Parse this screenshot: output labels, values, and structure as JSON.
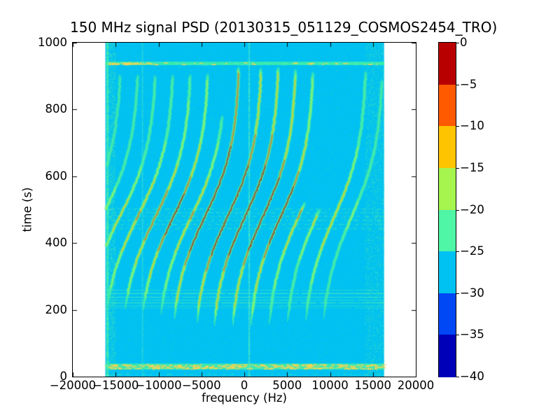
{
  "chart": {
    "title": "150 MHz signal PSD (20130315_051129_COSMOS2454_TRO)",
    "xlabel": "frequency (Hz)",
    "ylabel": "time (s)"
  },
  "chart_data": {
    "type": "heatmap",
    "subtype": "doppler-spectrogram-waterfall",
    "title": "150 MHz signal PSD (20130315_051129_COSMOS2454_TRO)",
    "xlabel": "frequency (Hz)",
    "ylabel": "time (s)",
    "xlim": [
      -20000,
      20000
    ],
    "ylim": [
      0,
      1000
    ],
    "grid": false,
    "xtick_values": [
      -20000,
      -15000,
      -10000,
      -5000,
      0,
      5000,
      10000,
      15000,
      20000
    ],
    "xtick_labels": [
      "−20000",
      "−15000",
      "−10000",
      "−5000",
      "0",
      "5000",
      "10000",
      "15000",
      "20000"
    ],
    "ytick_values": [
      1000,
      800,
      600,
      400,
      200,
      0
    ],
    "ytick_labels": [
      "1000",
      "800",
      "600",
      "400",
      "200",
      "0"
    ],
    "colorbar": {
      "tick_values": [
        0,
        -5,
        -10,
        -15,
        -20,
        -25,
        -30,
        -35,
        -40
      ],
      "tick_labels": [
        "0",
        "−5",
        "−10",
        "−15",
        "−20",
        "−25",
        "−30",
        "−35",
        "−40"
      ],
      "segment_colors": [
        "#b80000",
        "#ff5a00",
        "#ffc400",
        "#a6f44e",
        "#4ef6a6",
        "#00c2f2",
        "#0048f6",
        "#0000b8"
      ]
    },
    "background": {
      "color": "#00c1f1",
      "level_db": -28,
      "extent_hz": [
        -16200,
        16300
      ]
    },
    "doppler_model": {
      "center_time_s": 480,
      "tau_s": 112
    },
    "traces": [
      {
        "f_top_hz": -14280,
        "swing_hz": 8780,
        "intensity": 0.3,
        "t_start_s": 905,
        "t_end_s": 380,
        "top_boost": 0
      },
      {
        "f_top_hz": -12240,
        "swing_hz": 8690,
        "intensity": 0.4,
        "t_start_s": 905,
        "t_end_s": 300,
        "top_boost": 0
      },
      {
        "f_top_hz": -10200,
        "swing_hz": 8600,
        "intensity": 0.5,
        "t_start_s": 900,
        "t_end_s": 235,
        "top_boost": 0
      },
      {
        "f_top_hz": -8160,
        "swing_hz": 8510,
        "intensity": 0.62,
        "t_start_s": 902,
        "t_end_s": 210,
        "top_boost": 0
      },
      {
        "f_top_hz": -6120,
        "swing_hz": 8420,
        "intensity": 0.72,
        "t_start_s": 903,
        "t_end_s": 200,
        "top_boost": 0
      },
      {
        "f_top_hz": -4080,
        "swing_hz": 8330,
        "intensity": 0.8,
        "t_start_s": 905,
        "t_end_s": 195,
        "top_boost": 0.05
      },
      {
        "f_top_hz": -2040,
        "swing_hz": 8240,
        "intensity": 0.62,
        "t_start_s": 780,
        "t_end_s": 185,
        "top_boost": 0
      },
      {
        "f_top_hz": -500,
        "swing_hz": 8150,
        "intensity": 0.93,
        "t_start_s": 925,
        "t_end_s": 170,
        "top_boost": 0.35
      },
      {
        "f_top_hz": 2100,
        "swing_hz": 8060,
        "intensity": 1.0,
        "t_start_s": 922,
        "t_end_s": 160,
        "top_boost": 0.15
      },
      {
        "f_top_hz": 4080,
        "swing_hz": 7970,
        "intensity": 1.0,
        "t_start_s": 925,
        "t_end_s": 150,
        "top_boost": 0.15
      },
      {
        "f_top_hz": 6120,
        "swing_hz": 7880,
        "intensity": 0.95,
        "t_start_s": 918,
        "t_end_s": 150,
        "top_boost": 0.05
      },
      {
        "f_top_hz": 8160,
        "swing_hz": 7790,
        "intensity": 0.88,
        "t_start_s": 910,
        "t_end_s": 150,
        "top_boost": 0
      },
      {
        "f_top_hz": 10200,
        "swing_hz": 7700,
        "intensity": 0.62,
        "t_start_s": 520,
        "t_end_s": 155,
        "top_boost": 0
      },
      {
        "f_top_hz": 12240,
        "swing_hz": 7610,
        "intensity": 0.48,
        "t_start_s": 500,
        "t_end_s": 160,
        "top_boost": 0
      },
      {
        "f_top_hz": 14280,
        "swing_hz": 7520,
        "intensity": 0.6,
        "t_start_s": 912,
        "t_end_s": 165,
        "top_boost": 0
      },
      {
        "f_top_hz": 16250,
        "swing_hz": 7430,
        "intensity": 0.35,
        "t_start_s": 890,
        "t_end_s": 170,
        "top_boost": 0
      }
    ],
    "vertical_lines": [
      {
        "f_hz": -15950,
        "strength": 0.95,
        "width": 3,
        "color": "#49f2a6"
      },
      {
        "f_hz": -11870,
        "strength": 0.5,
        "width": 2,
        "color": "#55ecc2"
      },
      {
        "f_hz": 570,
        "strength": 0.75,
        "width": 2.4,
        "color": "#55ecc2"
      }
    ],
    "horizontal_bands": [
      {
        "t_center_s": 938,
        "t_halfwidth_s": 5,
        "color": "#3cf0a4",
        "yellow_dashes": true
      },
      {
        "t_center_s": 30,
        "t_halfwidth_s": 9,
        "color": "#42ecaa",
        "yellow_dashes": true
      }
    ],
    "interference_lines": [
      {
        "t_s": 260,
        "alpha": 0.45
      },
      {
        "t_s": 250,
        "alpha": 0.8
      },
      {
        "t_s": 239,
        "alpha": 0.65
      },
      {
        "t_s": 230,
        "alpha": 0.55
      },
      {
        "t_s": 222,
        "alpha": 0.75
      },
      {
        "t_s": 213,
        "alpha": 0.45
      },
      {
        "t_s": 207,
        "alpha": 0.3
      }
    ],
    "dotted_lines_t_s": [
      503,
      492,
      481,
      469,
      457,
      444,
      8
    ],
    "noise_colors": [
      "#2bd2e6",
      "#3fe8c0",
      "#66f0a4",
      "#a8f460"
    ]
  }
}
